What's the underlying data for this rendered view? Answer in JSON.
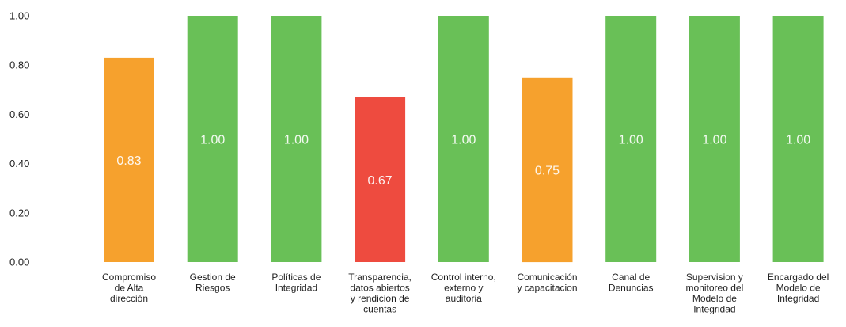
{
  "chart_data": {
    "type": "bar",
    "categories": [
      [
        "Compromiso",
        "de Alta",
        "dirección"
      ],
      [
        "Gestion de",
        "Riesgos"
      ],
      [
        "Políticas de",
        "Integridad"
      ],
      [
        "Transparencia,",
        "datos abiertos",
        "y rendicion de",
        "cuentas"
      ],
      [
        "Control interno,",
        "externo y",
        "auditoria"
      ],
      [
        "Comunicación",
        "y capacitacion"
      ],
      [
        "Canal de",
        "Denuncias"
      ],
      [
        "Supervision y",
        "monitoreo del",
        "Modelo de",
        "Integridad"
      ],
      [
        "Encargado del",
        "Modelo de",
        "Integridad"
      ]
    ],
    "values": [
      0.83,
      1.0,
      1.0,
      0.67,
      1.0,
      0.75,
      1.0,
      1.0,
      1.0
    ],
    "data_labels": [
      "0.83",
      "1.00",
      "1.00",
      "0.67",
      "1.00",
      "0.75",
      "1.00",
      "1.00",
      "1.00"
    ],
    "ylim": [
      0,
      1
    ],
    "yticks": [
      "0.00",
      "0.20",
      "0.40",
      "0.60",
      "0.80",
      "1.00"
    ],
    "colors": {
      "green": "#69c057",
      "orange": "#f6a12d",
      "red": "#ee4b3f"
    },
    "bar_colors": [
      "orange",
      "green",
      "green",
      "red",
      "green",
      "orange",
      "green",
      "green",
      "green"
    ],
    "grid": false,
    "legend": "none",
    "title": "",
    "xlabel": "",
    "ylabel": ""
  }
}
